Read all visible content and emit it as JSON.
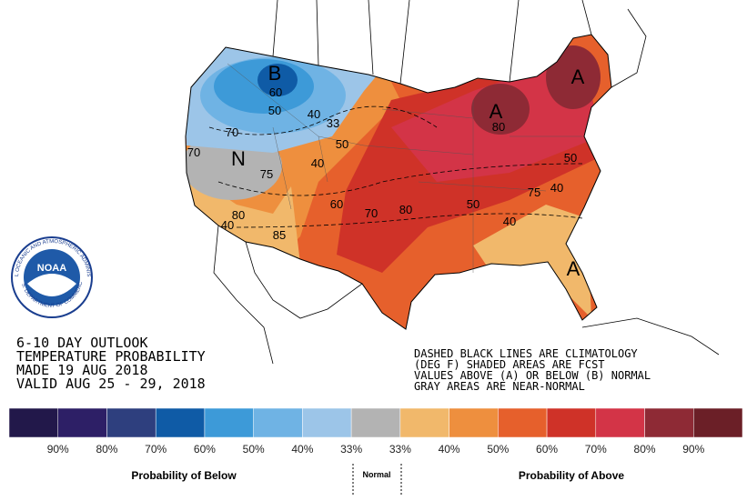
{
  "title_block": {
    "lines": [
      "6-10 DAY OUTLOOK",
      "TEMPERATURE PROBABILITY",
      "MADE  19 AUG 2018",
      "VALID  AUG 25 - 29, 2018"
    ]
  },
  "notes": {
    "lines": [
      "DASHED BLACK LINES ARE CLIMATOLOGY",
      "(DEG F) SHADED AREAS ARE FCST",
      "VALUES ABOVE (A) OR BELOW (B) NORMAL",
      "GRAY AREAS ARE NEAR-NORMAL"
    ]
  },
  "logo": {
    "name": "NOAA",
    "ring_top": "NATIONAL OCEANIC AND ATMOSPHERIC ADMINISTRATION",
    "ring_bottom": "U.S. DEPARTMENT OF COMMERCE"
  },
  "contour_labels": [
    "B",
    "60",
    "50",
    "40",
    "33",
    "50",
    "70",
    "70",
    "N",
    "75",
    "40",
    "60",
    "70",
    "80",
    "50",
    "40",
    "75",
    "40",
    "50",
    "A",
    "80",
    "A",
    "80",
    "40",
    "85",
    "A"
  ],
  "legend": {
    "colors": [
      "#22184a",
      "#2d1f66",
      "#2e3f7e",
      "#0f5ba6",
      "#3d9ad8",
      "#6fb3e4",
      "#9cc5e8",
      "#b3b3b3",
      "#f1b86b",
      "#ee8f3e",
      "#e6602c",
      "#cf3228",
      "#d33447",
      "#8e2a35",
      "#6b1f27"
    ],
    "labels": [
      "90%",
      "80%",
      "70%",
      "60%",
      "50%",
      "40%",
      "33%",
      "33%",
      "40%",
      "50%",
      "60%",
      "70%",
      "80%",
      "90%"
    ],
    "below": "Probability of Below",
    "normal": "Normal",
    "above": "Probability of Above"
  }
}
